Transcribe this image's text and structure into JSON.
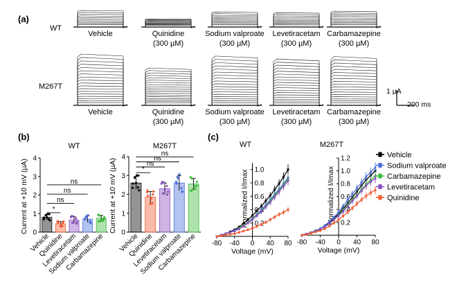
{
  "figure": {
    "panel_a_label": "(a)",
    "panel_b_label": "(b)",
    "panel_c_label": "(c)",
    "row_wt": "WT",
    "row_m267t": "M267T",
    "conc": "(300 µM)",
    "scale_current": "1 µA",
    "scale_time": "200 ms"
  },
  "traces": {
    "drugs": [
      "Vehicle",
      "Quinidine",
      "Sodium valproate",
      "Levetiracetam",
      "Carbamazepine"
    ],
    "wt_relative_amplitude": [
      1.0,
      0.45,
      0.9,
      0.85,
      0.95
    ],
    "m267t_relative_amplitude": [
      1.0,
      0.72,
      0.96,
      0.9,
      0.95
    ]
  },
  "colors": {
    "Vehicle": "#000000",
    "Quinidine": "#f05a32",
    "Levetiracetam": "#8a4fbf",
    "Sodium valproate": "#4a6fd8",
    "Carbamazepine": "#3cba3c"
  },
  "chart_data": [
    {
      "type": "bar",
      "id": "b_wt",
      "title": "WT",
      "ylabel": "Current at +10 mV (µA)",
      "ylim": [
        0,
        4
      ],
      "yticks": [
        "0",
        "1",
        "2",
        "3",
        "4"
      ],
      "categories": [
        "Vehicle",
        "Quinidine",
        "Levetiracetam",
        "Sodium valproate",
        "Carbamazepine"
      ],
      "values": [
        0.8,
        0.45,
        0.65,
        0.7,
        0.75
      ],
      "errors": [
        0.15,
        0.12,
        0.18,
        0.18,
        0.15
      ],
      "significance": [
        "*",
        "ns",
        "ns",
        "ns"
      ]
    },
    {
      "type": "bar",
      "id": "b_m267t",
      "title": "M267T",
      "ylabel": "Current at +10 mV (µA)",
      "ylim": [
        0,
        4
      ],
      "yticks": [
        "0",
        "1",
        "2",
        "3",
        "4"
      ],
      "categories": [
        "Vehicle",
        "Quinidine",
        "Levetiracetam",
        "Sodium valproate",
        "Carbamazepine"
      ],
      "values": [
        2.6,
        1.85,
        2.3,
        2.6,
        2.55
      ],
      "errors": [
        0.35,
        0.3,
        0.3,
        0.4,
        0.3
      ],
      "significance": [
        "*",
        "ns",
        "ns",
        "ns"
      ]
    },
    {
      "type": "line",
      "id": "c_wt",
      "title": "WT",
      "xlabel": "Voltage (mV)",
      "ylabel": "Normalized I/Imax",
      "xlim": [
        -80,
        80
      ],
      "ylim": [
        -0.05,
        1.1
      ],
      "xticks": [
        "-80",
        "-40",
        "0",
        "40",
        "80"
      ],
      "yticks": [
        "0.2",
        "0.4",
        "0.6",
        "0.8",
        "1.0"
      ],
      "x": [
        -80,
        -70,
        -60,
        -50,
        -40,
        -30,
        -20,
        -10,
        0,
        10,
        20,
        30,
        40,
        50,
        60,
        70,
        80
      ],
      "series": [
        {
          "name": "Vehicle",
          "values": [
            0.0,
            0.02,
            0.04,
            0.07,
            0.1,
            0.14,
            0.19,
            0.25,
            0.31,
            0.38,
            0.45,
            0.53,
            0.61,
            0.7,
            0.79,
            0.89,
            1.0
          ]
        },
        {
          "name": "Sodium valproate",
          "values": [
            0.0,
            0.02,
            0.04,
            0.06,
            0.09,
            0.12,
            0.16,
            0.21,
            0.27,
            0.33,
            0.4,
            0.47,
            0.55,
            0.63,
            0.71,
            0.79,
            0.88
          ]
        },
        {
          "name": "Carbamazepine",
          "values": [
            0.0,
            0.02,
            0.04,
            0.06,
            0.08,
            0.12,
            0.16,
            0.21,
            0.26,
            0.32,
            0.38,
            0.45,
            0.53,
            0.61,
            0.69,
            0.77,
            0.86
          ]
        },
        {
          "name": "Levetiracetam",
          "values": [
            0.0,
            0.02,
            0.04,
            0.06,
            0.08,
            0.11,
            0.15,
            0.2,
            0.25,
            0.31,
            0.37,
            0.44,
            0.51,
            0.59,
            0.67,
            0.75,
            0.83
          ]
        },
        {
          "name": "Quinidine",
          "values": [
            0.0,
            0.01,
            0.02,
            0.03,
            0.04,
            0.06,
            0.08,
            0.1,
            0.12,
            0.15,
            0.18,
            0.21,
            0.25,
            0.29,
            0.33,
            0.36,
            0.4
          ]
        }
      ]
    },
    {
      "type": "line",
      "id": "c_m267t",
      "title": "M267T",
      "xlabel": "Voltage (mV)",
      "ylabel": "Normalized I/Imax",
      "xlim": [
        -80,
        80
      ],
      "ylim": [
        -0.05,
        1.2
      ],
      "xticks": [
        "-80",
        "-40",
        "0",
        "40",
        "80"
      ],
      "yticks": [
        "0.2",
        "0.4",
        "0.6",
        "0.8",
        "1.0",
        "1.2"
      ],
      "x": [
        -80,
        -70,
        -60,
        -50,
        -40,
        -30,
        -20,
        -10,
        0,
        10,
        20,
        30,
        40,
        50,
        60,
        70,
        80
      ],
      "series": [
        {
          "name": "Vehicle",
          "values": [
            0.0,
            0.02,
            0.04,
            0.07,
            0.1,
            0.14,
            0.2,
            0.26,
            0.33,
            0.41,
            0.5,
            0.59,
            0.68,
            0.77,
            0.86,
            0.93,
            1.0
          ]
        },
        {
          "name": "Sodium valproate",
          "values": [
            0.0,
            0.02,
            0.04,
            0.07,
            0.1,
            0.15,
            0.21,
            0.28,
            0.36,
            0.45,
            0.55,
            0.64,
            0.73,
            0.82,
            0.91,
            0.98,
            1.05
          ]
        },
        {
          "name": "Carbamazepine",
          "values": [
            0.0,
            0.02,
            0.04,
            0.06,
            0.09,
            0.13,
            0.18,
            0.24,
            0.31,
            0.39,
            0.47,
            0.55,
            0.63,
            0.71,
            0.79,
            0.86,
            0.92
          ]
        },
        {
          "name": "Levetiracetam",
          "values": [
            0.0,
            0.02,
            0.04,
            0.06,
            0.09,
            0.13,
            0.18,
            0.24,
            0.3,
            0.37,
            0.45,
            0.53,
            0.61,
            0.69,
            0.77,
            0.83,
            0.88
          ]
        },
        {
          "name": "Quinidine",
          "values": [
            0.0,
            0.01,
            0.03,
            0.05,
            0.07,
            0.1,
            0.14,
            0.19,
            0.24,
            0.3,
            0.36,
            0.42,
            0.49,
            0.55,
            0.61,
            0.66,
            0.7
          ]
        }
      ]
    }
  ]
}
